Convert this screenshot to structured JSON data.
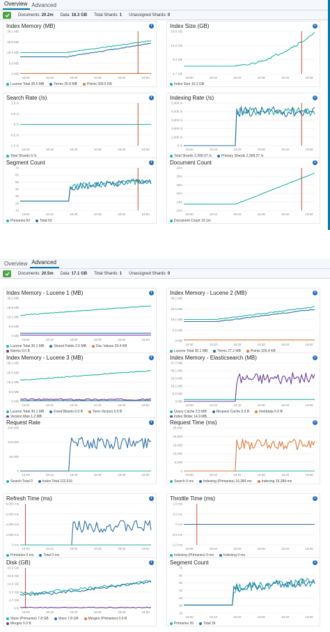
{
  "colors": {
    "teal": "#20b5a3",
    "blue": "#2c6fa8",
    "orange": "#e07b39",
    "purple": "#6e3d9e",
    "red": "#c0392b",
    "grid": "#eeeeee",
    "ok_green": "#4ea442"
  },
  "screens": [
    {
      "tabs": [
        {
          "label": "Overview",
          "active": true
        },
        {
          "label": "Advanced",
          "active": false
        }
      ],
      "status": {
        "documents_label": "Documents:",
        "documents": "20.2m",
        "data_label": "Data:",
        "data": "18.3 GB",
        "total_shards_label": "Total Shards:",
        "total_shards": "1",
        "unassigned_label": "Unassigned Shards:",
        "unassigned": "0"
      },
      "panels": [
        {
          "title": "Index Memory (MB)",
          "yticks": [
            "38.1 MB",
            "28.6 MB",
            "19.1 MB",
            "9.5 MB",
            "0 MB"
          ],
          "xticks": [
            "19:00",
            "19:10",
            "19:20",
            "19:30",
            "19:40",
            "19:50"
          ],
          "marker": 0.9,
          "legend": [
            {
              "label": "Lucene Total 28.5 MB",
              "color": "#20b5a3"
            },
            {
              "label": "Terms 25.8 MB",
              "color": "#2c6fa8"
            },
            {
              "label": "Points 305.5 KB",
              "color": "#e07b39"
            }
          ],
          "series": [
            {
              "color": "#20b5a3",
              "kind": "ramp",
              "start_pct": 0.35,
              "from": 0.5,
              "to": 0.78,
              "noise": 0.01,
              "seed": 11
            },
            {
              "color": "#2c6fa8",
              "kind": "ramp",
              "start_pct": 0.35,
              "from": 0.4,
              "to": 0.72,
              "noise": 0.01,
              "seed": 12
            },
            {
              "color": "#e07b39",
              "kind": "flat",
              "level": 0.01,
              "noise": 0,
              "seed": 13
            }
          ]
        },
        {
          "title": "Index Size (GB)",
          "yticks": [
            "18.6 GB",
            "14.0 GB",
            "9.3 GB",
            "4.7 GB"
          ],
          "xticks": [
            "19:00",
            "19:10",
            "19:20",
            "19:30",
            "19:40",
            "19:50"
          ],
          "marker": 0.9,
          "legend": [
            {
              "label": "Index Size 15.2 GB",
              "color": "#20b5a3"
            }
          ],
          "series": [
            {
              "color": "#20b5a3",
              "kind": "ramp",
              "start_pct": 0.4,
              "from": 0.18,
              "to": 0.95,
              "noise": 0.03,
              "seed": 21,
              "curve": 1.6
            }
          ]
        },
        {
          "title": "Search Rate (/s)",
          "yticks": [
            "1.0 /s",
            "0.5 /s",
            "0 /s",
            "-0.5 /s",
            "-1.0 /s"
          ],
          "xticks": [
            "19:00",
            "19:10",
            "19:20",
            "19:30",
            "19:40",
            "19:50"
          ],
          "marker": 0.9,
          "legend": [
            {
              "label": "Total Shards 0 /s",
              "color": "#20b5a3"
            }
          ],
          "series": [
            {
              "color": "#20b5a3",
              "kind": "flat",
              "level": 0.5,
              "noise": 0,
              "seed": 31
            }
          ]
        },
        {
          "title": "Indexing Rate (/s)",
          "yticks": [
            "5,000 /s",
            "4,000 /s",
            "3,000 /s",
            "2,000 /s",
            "1,000 /s",
            "0 /s"
          ],
          "xticks": [
            "19:00",
            "19:10",
            "19:20",
            "19:30",
            "19:40",
            "19:50"
          ],
          "marker": 0.9,
          "legend": [
            {
              "label": "Total Shards 2,999.07 /s",
              "color": "#20b5a3"
            },
            {
              "label": "Primary Shards 2,999.07 /s",
              "color": "#2c6fa8"
            }
          ],
          "series": [
            {
              "color": "#20b5a3",
              "kind": "step",
              "start_pct": 0.4,
              "level": 0.8,
              "noise": 0.1,
              "seed": 41
            },
            {
              "color": "#2c6fa8",
              "kind": "step",
              "start_pct": 0.4,
              "level": 0.8,
              "noise": 0.12,
              "seed": 42
            }
          ]
        },
        {
          "title": "Segment Count",
          "yticks": [
            "70",
            "60",
            "50",
            "40",
            "30",
            "20",
            "10"
          ],
          "xticks": [
            "19:00",
            "19:10",
            "19:20",
            "19:30",
            "19:40",
            "19:50"
          ],
          "marker": 0.9,
          "legend": [
            {
              "label": "Primaries 63",
              "color": "#20b5a3"
            },
            {
              "label": "Total 63",
              "color": "#2c6fa8"
            }
          ],
          "series": [
            {
              "color": "#20b5a3",
              "kind": "step",
              "start_pct": 0.38,
              "level": 0.55,
              "base": 0.22,
              "noise": 0.08,
              "seed": 51,
              "trend": 0.15
            },
            {
              "color": "#2c6fa8",
              "kind": "step",
              "start_pct": 0.38,
              "level": 0.55,
              "base": 0.22,
              "noise": 0.08,
              "seed": 52,
              "trend": 0.15
            }
          ]
        },
        {
          "title": "Document Count",
          "yticks": [
            "22m",
            "20m",
            "18m",
            "16m",
            "14m",
            "12m"
          ],
          "xticks": [
            "19:00",
            "19:10",
            "19:20",
            "19:30",
            "19:40",
            "19:50"
          ],
          "marker": 0.9,
          "legend": [
            {
              "label": "Document Count 19.1m",
              "color": "#20b5a3"
            }
          ],
          "series": [
            {
              "color": "#20b5a3",
              "kind": "ramp",
              "start_pct": 0.4,
              "from": 0.15,
              "to": 0.88,
              "noise": 0.005,
              "seed": 61,
              "base": 0.15
            }
          ]
        }
      ]
    },
    {
      "tabs": [
        {
          "label": "Overview",
          "active": false
        },
        {
          "label": "Advanced",
          "active": true
        }
      ],
      "status": {
        "documents_label": "Documents:",
        "documents": "20.5m",
        "data_label": "Data:",
        "data": "17.1 GB",
        "total_shards_label": "Total Shards:",
        "total_shards": "1",
        "unassigned_label": "Unassigned Shards:",
        "unassigned": "0"
      },
      "panels": [
        {
          "title": "Index Memory - Lucene 1 (MB)",
          "yticks": [
            "38.1 MB",
            "28.6 MB",
            "19.1 MB",
            "9.5 MB",
            "0 MB"
          ],
          "xticks": [
            "19:00",
            "19:10",
            "19:20",
            "19:30",
            "19:40",
            "19:50"
          ],
          "legend": [
            {
              "label": "Lucene Total 30.1 MB",
              "color": "#20b5a3"
            },
            {
              "label": "Stored Fields 2.5 MB",
              "color": "#2c6fa8"
            },
            {
              "label": "Doc Values 29.4 KB",
              "color": "#e07b39"
            },
            {
              "label": "Norms 0.0 B",
              "color": "#6e3d9e"
            }
          ],
          "series": [
            {
              "color": "#20b5a3",
              "kind": "ramp",
              "start_pct": 0.0,
              "from": 0.55,
              "to": 0.8,
              "noise": 0.01,
              "seed": 71
            },
            {
              "color": "#2c6fa8",
              "kind": "flat",
              "level": 0.07,
              "noise": 0,
              "seed": 72
            },
            {
              "color": "#6e3d9e",
              "kind": "flat",
              "level": 0.02,
              "noise": 0,
              "seed": 73
            }
          ]
        },
        {
          "title": "Index Memory - Lucene 2 (MB)",
          "yticks": [
            "38.1 MB",
            "28.6 MB",
            "19.1 MB",
            "9.5 MB",
            "0 MB"
          ],
          "xticks": [
            "19:00",
            "19:10",
            "19:20",
            "19:30",
            "19:40",
            "19:50"
          ],
          "legend": [
            {
              "label": "Lucene Total 30.1 MB",
              "color": "#20b5a3"
            },
            {
              "label": "Terms 27.2 MB",
              "color": "#2c6fa8"
            },
            {
              "label": "Points 326.4 KB",
              "color": "#e07b39"
            }
          ],
          "series": [
            {
              "color": "#20b5a3",
              "kind": "ramp",
              "start_pct": 0.25,
              "from": 0.5,
              "to": 0.8,
              "noise": 0.01,
              "seed": 81
            },
            {
              "color": "#2c6fa8",
              "kind": "ramp",
              "start_pct": 0.25,
              "from": 0.45,
              "to": 0.74,
              "noise": 0.01,
              "seed": 82
            },
            {
              "color": "#e07b39",
              "kind": "flat",
              "level": 0.02,
              "noise": 0,
              "seed": 83
            }
          ]
        },
        {
          "title": "Index Memory - Lucene 3 (MB)",
          "yticks": [
            "38.1 MB",
            "28.6 MB",
            "19.1 MB",
            "9.5 MB",
            "0 MB"
          ],
          "xticks": [
            "19:00",
            "19:10",
            "19:20",
            "19:30",
            "19:40",
            "19:50"
          ],
          "legend": [
            {
              "label": "Lucene Total 30.1 MB",
              "color": "#20b5a3"
            },
            {
              "label": "Fixed Bitsets 0.0 B",
              "color": "#2c6fa8"
            },
            {
              "label": "Term Vectors 0.0 B",
              "color": "#e07b39"
            },
            {
              "label": "Version Map 1.2 MB",
              "color": "#6e3d9e"
            }
          ],
          "series": [
            {
              "color": "#20b5a3",
              "kind": "ramp",
              "start_pct": 0.0,
              "from": 0.55,
              "to": 0.8,
              "noise": 0.01,
              "seed": 91
            },
            {
              "color": "#6e3d9e",
              "kind": "flat",
              "level": 0.05,
              "noise": 0.02,
              "seed": 92
            },
            {
              "color": "#2c6fa8",
              "kind": "flat",
              "level": 0.02,
              "noise": 0,
              "seed": 93
            }
          ]
        },
        {
          "title": "Index Memory - Elasticsearch (MB)",
          "yticks": [
            "47.7 MB",
            "38.1 MB",
            "28.6 MB",
            "19.1 MB",
            "9.5 MB",
            "0 MB"
          ],
          "xticks": [
            "19:00",
            "19:10",
            "19:20",
            "19:30",
            "19:40",
            "19:50"
          ],
          "legend": [
            {
              "label": "Query Cache 2.5 MB",
              "color": "#20b5a3"
            },
            {
              "label": "Request Cache 0.0 B",
              "color": "#2c6fa8"
            },
            {
              "label": "Fielddata 0.0 B",
              "color": "#e07b39"
            },
            {
              "label": "Index Writer 14.9 MB",
              "color": "#6e3d9e"
            }
          ],
          "series": [
            {
              "color": "#6e3d9e",
              "kind": "step",
              "start_pct": 0.4,
              "level": 0.6,
              "noise": 0.15,
              "seed": 101
            },
            {
              "color": "#20b5a3",
              "kind": "flat",
              "level": 0.05,
              "noise": 0,
              "seed": 102
            }
          ]
        },
        {
          "title": "Request Rate",
          "yticks": [
            "150,000",
            "100,000",
            "50,000",
            "0"
          ],
          "xticks": [
            "19:00",
            "19:10",
            "19:20",
            "19:30",
            "19:40",
            "19:50"
          ],
          "legend": [
            {
              "label": "Search Total 0",
              "color": "#20b5a3"
            },
            {
              "label": "Index Total 113,516",
              "color": "#2c6fa8"
            }
          ],
          "series": [
            {
              "color": "#20b5a3",
              "kind": "flat",
              "level": 0.0,
              "noise": 0,
              "seed": 111
            },
            {
              "color": "#2c6fa8",
              "kind": "step",
              "start_pct": 0.38,
              "level": 0.65,
              "noise": 0.14,
              "seed": 112
            }
          ]
        },
        {
          "title": "Request Time (ms)",
          "yticks": [
            "25,000",
            "20,000",
            "15,000",
            "10,000",
            "5,000",
            "0"
          ],
          "xticks": [
            "19:00",
            "19:10",
            "19:20",
            "19:30",
            "19:40",
            "19:50"
          ],
          "legend": [
            {
              "label": "Search 0 ms",
              "color": "#20b5a3"
            },
            {
              "label": "Indexing (Primaries) 16,384 ms",
              "color": "#2c6fa8"
            },
            {
              "label": "Indexing 16,384 ms",
              "color": "#e07b39"
            }
          ],
          "series": [
            {
              "color": "#20b5a3",
              "kind": "flat",
              "level": 0.0,
              "noise": 0,
              "seed": 121
            },
            {
              "color": "#e07b39",
              "kind": "step",
              "start_pct": 0.4,
              "level": 0.62,
              "noise": 0.13,
              "seed": 122
            }
          ]
        },
        {
          "title": "Refresh Time (ms)",
          "yticks": [
            "8,000 ms",
            "6,000 ms",
            "4,000 ms",
            "2,000 ms",
            "0 ms"
          ],
          "xticks": [
            "19:00",
            "19:10",
            "19:20",
            "19:30",
            "19:40",
            "19:50"
          ],
          "marker": 0.04,
          "legend": [
            {
              "label": "Primaries 0 ms",
              "color": "#20b5a3"
            },
            {
              "label": "Total 0 ms",
              "color": "#2c6fa8"
            }
          ],
          "series": [
            {
              "color": "#2c6fa8",
              "kind": "step",
              "start_pct": 0.4,
              "level": 0.45,
              "noise": 0.15,
              "seed": 131
            },
            {
              "color": "#20b5a3",
              "kind": "flat",
              "level": 0.0,
              "noise": 0,
              "seed": 132
            }
          ]
        },
        {
          "title": "Throttle Time (ms)",
          "yticks": [
            "1.0 ms",
            "0.5 ms",
            "0 ms",
            "-0.5 ms",
            "-1.0 ms"
          ],
          "xticks": [
            "19:00",
            "19:10",
            "19:20",
            "19:30",
            "19:40",
            "19:50"
          ],
          "marker": 0.1,
          "legend": [
            {
              "label": "Indexing (Primaries) 0 ms",
              "color": "#20b5a3"
            },
            {
              "label": "Indexing 0 ms",
              "color": "#2c6fa8"
            }
          ],
          "series": [
            {
              "color": "#2c6fa8",
              "kind": "flat",
              "level": 0.5,
              "noise": 0,
              "seed": 141
            }
          ]
        },
        {
          "title": "Disk (GB)",
          "yticks": [
            "23.3 GB",
            "18.6 GB",
            "14.0 GB",
            "9.3 GB",
            "4.7 GB",
            "0 B"
          ],
          "xticks": [
            "19:00",
            "19:10",
            "19:20",
            "19:30",
            "19:40",
            "19:50"
          ],
          "marker": 0.04,
          "legend": [
            {
              "label": "Store (Primaries) 7.8 GB",
              "color": "#20b5a3"
            },
            {
              "label": "Store 7.8 GB",
              "color": "#2c6fa8"
            },
            {
              "label": "Merges (Primaries) 0.0 B",
              "color": "#e07b39"
            },
            {
              "label": "Merges 0.0 B",
              "color": "#6e3d9e"
            }
          ],
          "series": [
            {
              "color": "#20b5a3",
              "kind": "ramp",
              "start_pct": 0.0,
              "from": 0.38,
              "to": 0.68,
              "noise": 0.03,
              "seed": 151,
              "curve": 1.4
            },
            {
              "color": "#2c6fa8",
              "kind": "ramp",
              "start_pct": 0.0,
              "from": 0.33,
              "to": 0.66,
              "noise": 0.03,
              "seed": 152,
              "curve": 1.4
            },
            {
              "color": "#6e3d9e",
              "kind": "flat",
              "level": 0.02,
              "noise": 0.01,
              "seed": 153
            }
          ]
        },
        {
          "title": "Segment Count",
          "yticks": [
            "70",
            "60",
            "50",
            "40",
            "30",
            "20",
            "10"
          ],
          "xticks": [
            "19:00",
            "19:10",
            "19:20",
            "19:30",
            "19:40",
            "19:50"
          ],
          "legend": [
            {
              "label": "Primaries 26",
              "color": "#20b5a3"
            },
            {
              "label": "Total 26",
              "color": "#2c6fa8"
            }
          ],
          "series": [
            {
              "color": "#20b5a3",
              "kind": "step",
              "start_pct": 0.38,
              "level": 0.55,
              "base": 0.18,
              "noise": 0.1,
              "seed": 161,
              "trend": 0.15
            },
            {
              "color": "#2c6fa8",
              "kind": "step",
              "start_pct": 0.38,
              "level": 0.55,
              "base": 0.18,
              "noise": 0.1,
              "seed": 162,
              "trend": 0.15
            }
          ]
        }
      ]
    }
  ]
}
